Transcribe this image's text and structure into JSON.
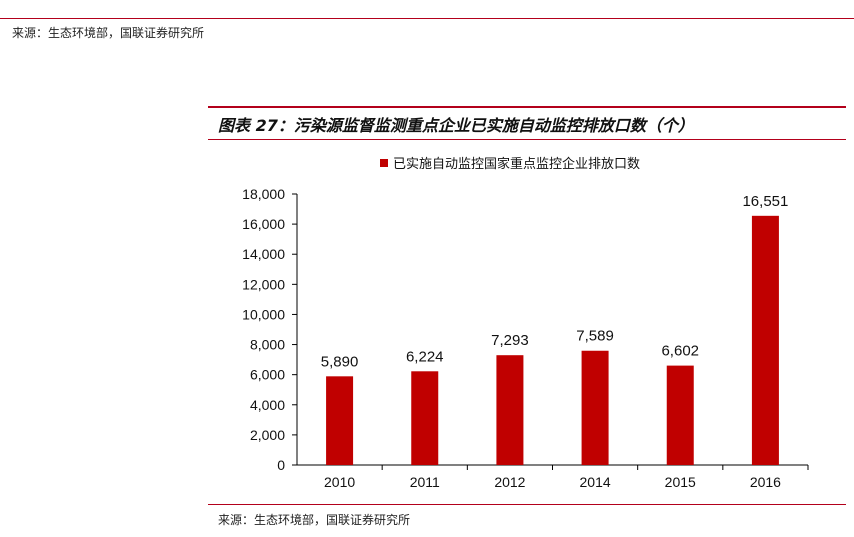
{
  "header": {
    "source": "来源：生态环境部，国联证券研究所"
  },
  "figure": {
    "title": "图表 27：污染源监督监测重点企业已实施自动监控排放口数（个）",
    "source": "来源：生态环境部，国联证券研究所"
  },
  "chart_data": {
    "type": "bar",
    "categories": [
      "2010",
      "2011",
      "2012",
      "2014",
      "2015",
      "2016"
    ],
    "series": [
      {
        "name": "已实施自动监控国家重点监控企业排放口数",
        "values": [
          5890,
          6224,
          7293,
          7589,
          6602,
          16551
        ],
        "data_labels": [
          "5,890",
          "6,224",
          "7,293",
          "7,589",
          "6,602",
          "16,551"
        ]
      }
    ],
    "ylim": [
      0,
      18000
    ],
    "yticks": [
      "0",
      "2,000",
      "4,000",
      "6,000",
      "8,000",
      "10,000",
      "12,000",
      "14,000",
      "16,000",
      "18,000"
    ],
    "legend_position": "top",
    "grid": false,
    "colors": {
      "bar": "#c00000",
      "rule": "#b3001b"
    }
  }
}
